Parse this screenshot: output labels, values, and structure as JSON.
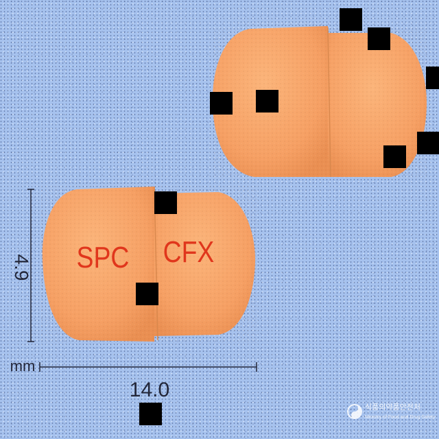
{
  "imprint": {
    "left": "SPC",
    "right": "CFX"
  },
  "dimensions": {
    "thickness": "4.9",
    "length": "14.0",
    "unit": "mm"
  },
  "watermark": {
    "org_korean": "식품의약품안전처",
    "org_english": "Ministry of Food and Drug Safety"
  },
  "colors": {
    "background": "#a6c2ee",
    "capsule": "#f7a56a",
    "imprint": "#e0361c",
    "guides": "#23273a"
  },
  "icons": [
    "mfds-logo-icon"
  ]
}
